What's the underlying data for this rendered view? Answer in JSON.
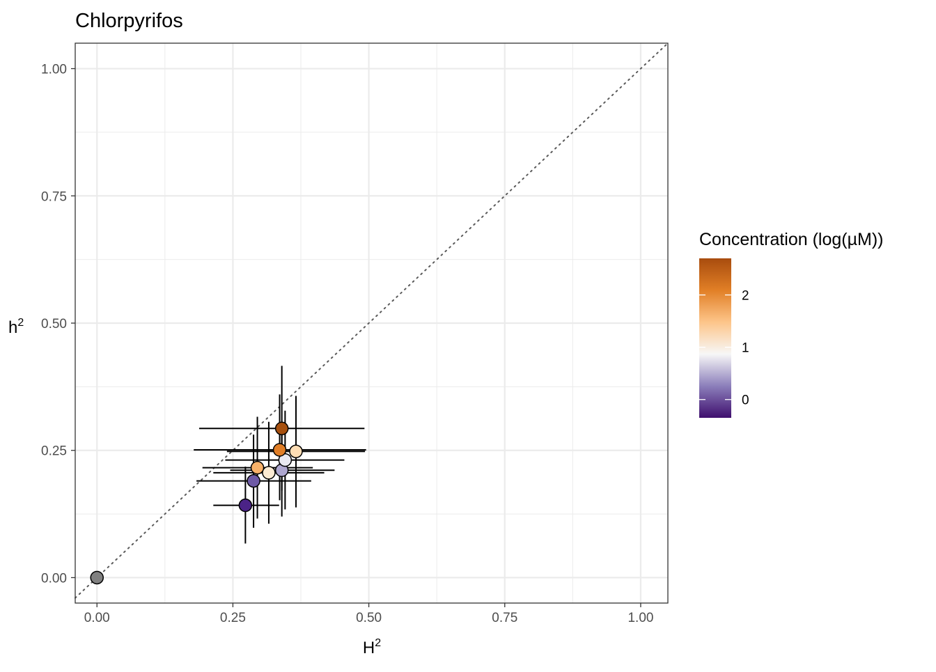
{
  "chart_data": {
    "type": "scatter",
    "title": "Chlorpyrifos",
    "xlabel": "H",
    "xlabel_sup": "2",
    "ylabel": "h",
    "ylabel_sup": "2",
    "xlim": [
      -0.04,
      1.05
    ],
    "ylim": [
      -0.05,
      1.05
    ],
    "x_ticks": [
      0.0,
      0.25,
      0.5,
      0.75,
      1.0
    ],
    "x_tick_labels": [
      "0.00",
      "0.25",
      "0.50",
      "0.75",
      "1.00"
    ],
    "y_ticks": [
      0.0,
      0.25,
      0.5,
      0.75,
      1.0
    ],
    "y_tick_labels": [
      "0.00",
      "0.25",
      "0.50",
      "0.75",
      "1.00"
    ],
    "grid": true,
    "reference_line": "y = x (dotted)",
    "legend": {
      "title": "Concentration (log(µM))",
      "placement": "right",
      "range": [
        -0.35,
        2.7
      ],
      "ticks": [
        0,
        1,
        2
      ],
      "tick_labels": [
        "0",
        "1",
        "2"
      ],
      "colors": [
        "#3f0f6e",
        "#8c7fbb",
        "#f7f7f7",
        "#fdc58a",
        "#e17f26",
        "#a84c0e"
      ]
    },
    "control_point": {
      "x": 0.0,
      "y": 0.0,
      "color": "#808080"
    },
    "points": [
      {
        "x": 0.273,
        "y": 0.142,
        "concentration": -0.1,
        "x_err": [
          0.214,
          0.335
        ],
        "y_err": [
          0.067,
          0.218
        ],
        "color": "#4b2387"
      },
      {
        "x": 0.288,
        "y": 0.19,
        "concentration": 0.15,
        "x_err": [
          0.183,
          0.394
        ],
        "y_err": [
          0.098,
          0.281
        ],
        "color": "#6e5aa6"
      },
      {
        "x": 0.34,
        "y": 0.211,
        "concentration": 0.6,
        "x_err": [
          0.245,
          0.437
        ],
        "y_err": [
          0.12,
          0.302
        ],
        "color": "#aea7d0"
      },
      {
        "x": 0.346,
        "y": 0.231,
        "concentration": 0.95,
        "x_err": [
          0.236,
          0.455
        ],
        "y_err": [
          0.134,
          0.328
        ],
        "color": "#e9e9f1"
      },
      {
        "x": 0.316,
        "y": 0.206,
        "concentration": 1.25,
        "x_err": [
          0.214,
          0.418
        ],
        "y_err": [
          0.106,
          0.306
        ],
        "color": "#fcebd3"
      },
      {
        "x": 0.366,
        "y": 0.248,
        "concentration": 1.65,
        "x_err": [
          0.239,
          0.493
        ],
        "y_err": [
          0.138,
          0.357
        ],
        "color": "#fdddb4"
      },
      {
        "x": 0.295,
        "y": 0.216,
        "concentration": 1.95,
        "x_err": [
          0.194,
          0.397
        ],
        "y_err": [
          0.116,
          0.316
        ],
        "color": "#f9b26a"
      },
      {
        "x": 0.336,
        "y": 0.251,
        "concentration": 2.25,
        "x_err": [
          0.178,
          0.495
        ],
        "y_err": [
          0.152,
          0.36
        ],
        "color": "#e07e27"
      },
      {
        "x": 0.34,
        "y": 0.293,
        "concentration": 2.6,
        "x_err": [
          0.188,
          0.492
        ],
        "y_err": [
          0.171,
          0.416
        ],
        "color": "#a6500f"
      }
    ]
  }
}
